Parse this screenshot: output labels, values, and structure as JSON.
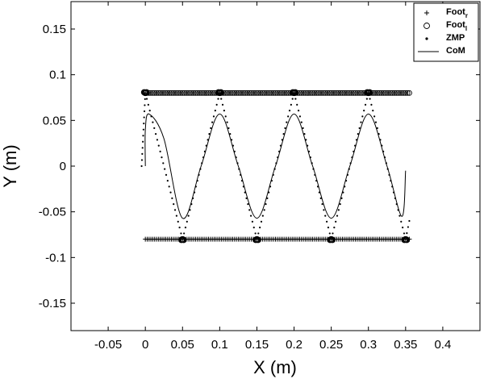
{
  "chart_data": {
    "type": "scatter",
    "title": "",
    "xlabel": "X (m)",
    "ylabel": "Y (m)",
    "xlim": [
      -0.1,
      0.45
    ],
    "ylim": [
      -0.18,
      0.18
    ],
    "x_ticks": [
      "-0.05",
      "0",
      "0.05",
      "0.1",
      "0.15",
      "0.2",
      "0.25",
      "0.3",
      "0.35",
      "0.4"
    ],
    "y_ticks": [
      "0.15",
      "0.1",
      "0.05",
      "0",
      "-0.05",
      "-0.1",
      "-0.15"
    ],
    "grid": false,
    "legend_position": "top-right",
    "legend": [
      {
        "key": "foot_r",
        "base": "Foot",
        "sub": "r",
        "marker": "plus"
      },
      {
        "key": "foot_l",
        "base": "Foot",
        "sub": "l",
        "marker": "circle"
      },
      {
        "key": "zmp",
        "base": "ZMP",
        "sub": "",
        "marker": "dot"
      },
      {
        "key": "com",
        "base": "CoM",
        "sub": "",
        "marker": "line"
      }
    ],
    "series": [
      {
        "key": "foot_r",
        "marker": "plus",
        "x_start": 0.0,
        "x_end": 0.355,
        "x_step": 0.0025,
        "y": -0.08,
        "clusters_x": [
          0.05,
          0.15,
          0.25,
          0.35
        ]
      },
      {
        "key": "foot_l",
        "marker": "circle",
        "x_start": 0.0,
        "x_end": 0.355,
        "x_step": 0.0025,
        "y": 0.08,
        "clusters_x": [
          0.0,
          0.1,
          0.2,
          0.3
        ]
      },
      {
        "key": "zmp",
        "marker": "dot",
        "description": "alternates between footholds",
        "turning_points": [
          {
            "x": -0.005,
            "y": 0.0
          },
          {
            "x": 0.0,
            "y": 0.08
          },
          {
            "x": 0.05,
            "y": -0.08
          },
          {
            "x": 0.1,
            "y": 0.08
          },
          {
            "x": 0.15,
            "y": -0.08
          },
          {
            "x": 0.2,
            "y": 0.08
          },
          {
            "x": 0.25,
            "y": -0.08
          },
          {
            "x": 0.3,
            "y": 0.08
          },
          {
            "x": 0.35,
            "y": -0.08
          },
          {
            "x": 0.355,
            "y": -0.06
          }
        ]
      },
      {
        "key": "com",
        "marker": "line",
        "points": [
          {
            "x": 0.0,
            "y": 0.0
          },
          {
            "x": 0.0,
            "y": 0.04
          },
          {
            "x": 0.005,
            "y": 0.057
          },
          {
            "x": 0.025,
            "y": 0.03
          },
          {
            "x": 0.05,
            "y": -0.057
          },
          {
            "x": 0.075,
            "y": 0.0
          },
          {
            "x": 0.1,
            "y": 0.057
          },
          {
            "x": 0.125,
            "y": 0.0
          },
          {
            "x": 0.15,
            "y": -0.057
          },
          {
            "x": 0.175,
            "y": 0.0
          },
          {
            "x": 0.2,
            "y": 0.057
          },
          {
            "x": 0.225,
            "y": 0.0
          },
          {
            "x": 0.25,
            "y": -0.057
          },
          {
            "x": 0.275,
            "y": 0.0
          },
          {
            "x": 0.3,
            "y": 0.057
          },
          {
            "x": 0.325,
            "y": 0.0
          },
          {
            "x": 0.345,
            "y": -0.055
          },
          {
            "x": 0.35,
            "y": -0.005
          }
        ]
      }
    ]
  }
}
